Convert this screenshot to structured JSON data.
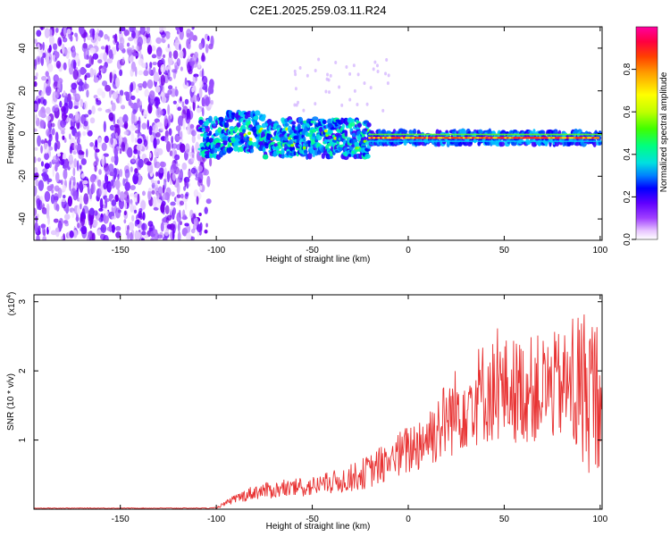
{
  "title": "C2E1.2025.259.03.11.R24",
  "colors": {
    "snr_line": "#e83232",
    "noise_purple": "#7a00ff",
    "colorbar": [
      "#ffffff",
      "#e8c6ff",
      "#a040ff",
      "#6000ff",
      "#0000ff",
      "#0080ff",
      "#00e0e0",
      "#00ff80",
      "#40ff00",
      "#c0ff00",
      "#ffff00",
      "#ffa000",
      "#ff4000",
      "#ff0040",
      "#ff00a0"
    ]
  },
  "chart_data": [
    {
      "type": "heatmap",
      "name": "spectrogram",
      "xlabel": "Height of straight line (km)",
      "ylabel": "Frequency (Hz)",
      "xlim": [
        -195,
        101
      ],
      "ylim": [
        -50,
        50
      ],
      "xticks": [
        -150,
        -100,
        -50,
        0,
        50,
        100
      ],
      "yticks": [
        -40,
        -20,
        0,
        20,
        40
      ],
      "signal_center_hz": -2,
      "noise_region_km": [
        -195,
        -108
      ],
      "colorbar": {
        "label": "Normalized spectral amplitude",
        "range": [
          0.0,
          1.0
        ],
        "ticks": [
          "0.0",
          "0.2",
          "0.4",
          "0.6",
          "0.8"
        ]
      }
    },
    {
      "type": "line",
      "name": "snr",
      "xlabel": "Height of straight line (km)",
      "ylabel": "SNR (10 * v/v)",
      "multiplier": "(x10",
      "multiplier_exp": "4",
      "multiplier_close": ")",
      "xlim": [
        -195,
        101
      ],
      "ylim": [
        0,
        3.1
      ],
      "xticks": [
        -150,
        -100,
        -50,
        0,
        50,
        100
      ],
      "yticks": [
        1,
        2,
        3
      ],
      "series": [
        {
          "name": "SNR",
          "envelope_km": [
            -195,
            -110,
            -100,
            -90,
            -80,
            -70,
            -60,
            -50,
            -40,
            -30,
            -20,
            -10,
            0,
            10,
            20,
            30,
            40,
            50,
            60,
            70,
            80,
            90,
            95,
            100,
            101
          ],
          "envelope_x1e4": [
            0.0,
            0.0,
            0.02,
            0.15,
            0.25,
            0.28,
            0.3,
            0.33,
            0.38,
            0.45,
            0.55,
            0.7,
            0.85,
            1.05,
            1.3,
            1.55,
            1.7,
            1.72,
            1.72,
            1.75,
            1.78,
            1.75,
            1.7,
            1.65,
            1.65
          ]
        }
      ]
    }
  ]
}
